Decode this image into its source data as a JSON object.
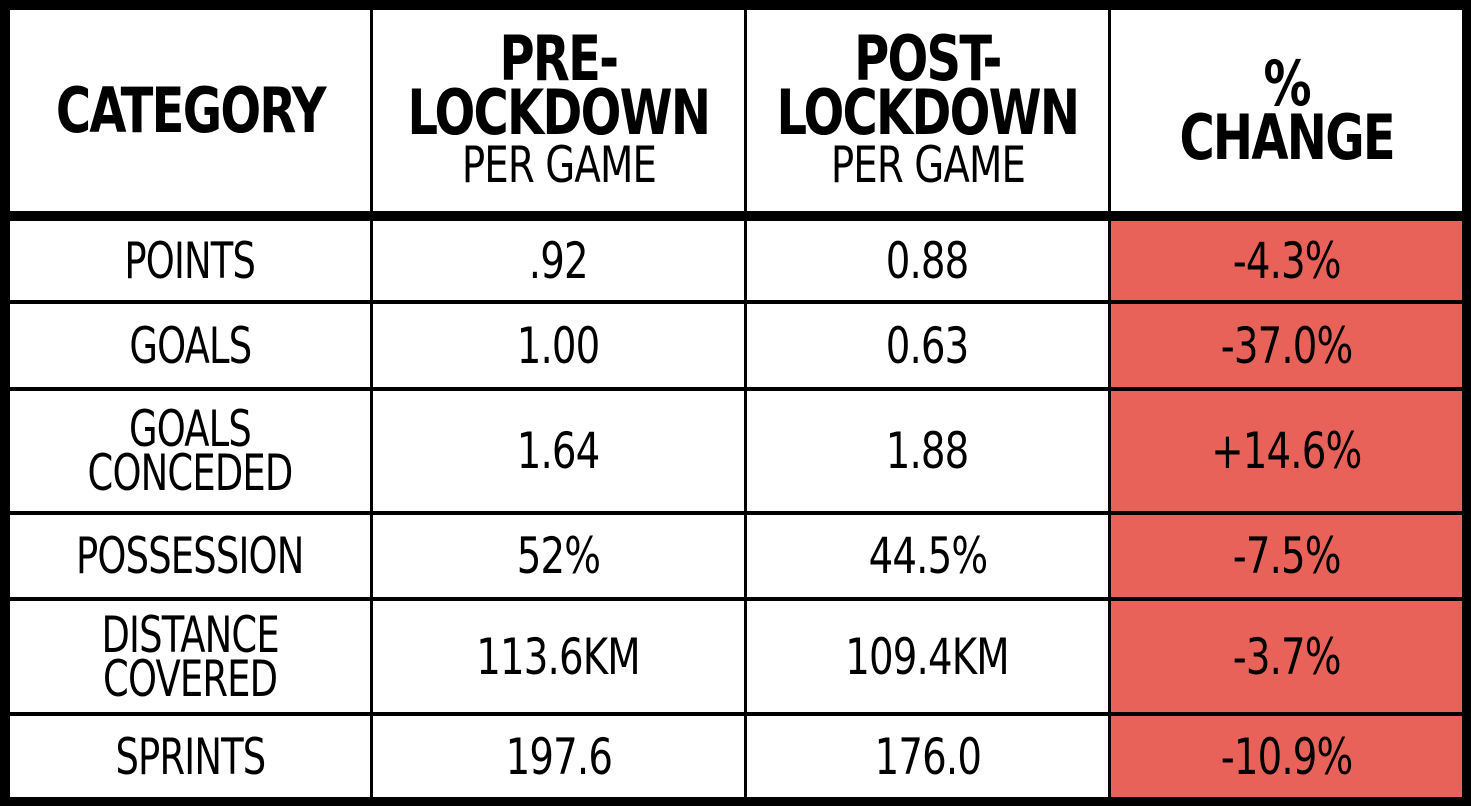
{
  "chart_data": {
    "type": "table",
    "columns": [
      {
        "main": "CATEGORY",
        "sub": ""
      },
      {
        "main": "PRE-\nLOCKDOWN",
        "sub": "PER GAME"
      },
      {
        "main": "POST-\nLOCKDOWN",
        "sub": "PER GAME"
      },
      {
        "main": "%\nCHANGE",
        "sub": ""
      }
    ],
    "rows": [
      {
        "category": "POINTS",
        "pre": ".92",
        "post": "0.88",
        "change": "-4.3%"
      },
      {
        "category": "GOALS",
        "pre": "1.00",
        "post": "0.63",
        "change": "-37.0%"
      },
      {
        "category": "GOALS\nCONCEDED",
        "pre": "1.64",
        "post": "1.88",
        "change": "+14.6%"
      },
      {
        "category": "POSSESSION",
        "pre": "52%",
        "post": "44.5%",
        "change": "-7.5%"
      },
      {
        "category": "DISTANCE\nCOVERED",
        "pre": "113.6KM",
        "post": "109.4KM",
        "change": "-3.7%"
      },
      {
        "category": "SPRINTS",
        "pre": "197.6",
        "post": "176.0",
        "change": "-10.9%"
      }
    ],
    "change_cell_color": "#e8625a",
    "border_color": "#000000",
    "cell_color": "#ffffff"
  }
}
